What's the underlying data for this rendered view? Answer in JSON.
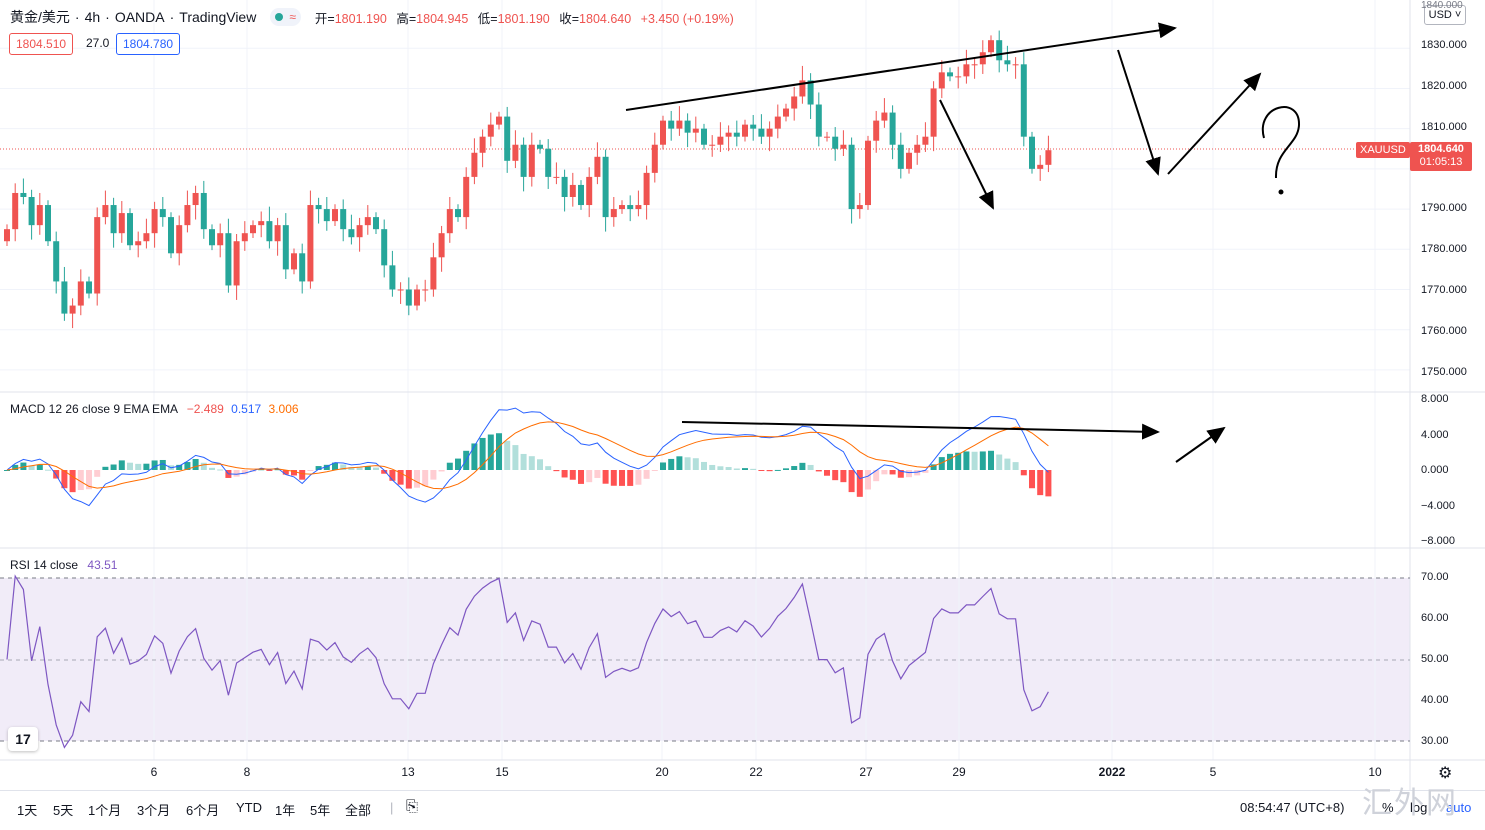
{
  "header": {
    "symbol": "黄金/美元",
    "interval": "4h",
    "broker": "OANDA",
    "platform": "TradingView",
    "ohlc": [
      {
        "k": "开=",
        "v": "1801.190"
      },
      {
        "k": "高=",
        "v": "1804.945"
      },
      {
        "k": "低=",
        "v": "1801.190"
      },
      {
        "k": "收=",
        "v": "1804.640"
      }
    ],
    "change": "+3.450 (+0.19%)",
    "bid": "1804.510",
    "spread": "27.0",
    "ask": "1804.780"
  },
  "price_axis": {
    "currency": "USD",
    "labels": [
      "1840.000",
      "1830.000",
      "1820.000",
      "1810.000",
      "1790.000",
      "1780.000",
      "1770.000",
      "1760.000",
      "1750.000"
    ],
    "current_symbol": "XAUUSD",
    "current_price": "1804.640",
    "countdown": "01:05:13"
  },
  "macd": {
    "title": "MACD 12 26 close 9 EMA EMA",
    "hist_val": "−2.489",
    "macd_val": "0.517",
    "signal_val": "3.006",
    "axis": [
      "8.000",
      "4.000",
      "0.000",
      "−4.000",
      "−8.000"
    ],
    "colors": {
      "macd": "#2962ff",
      "signal": "#ff6d00"
    }
  },
  "rsi": {
    "title": "RSI 14 close",
    "value": "43.51",
    "axis": [
      "70.00",
      "60.00",
      "50.00",
      "40.00",
      "30.00"
    ],
    "color": "#7e57c2"
  },
  "time_axis": [
    "6",
    "8",
    "13",
    "15",
    "20",
    "22",
    "27",
    "29",
    "2022",
    "5",
    "10"
  ],
  "toolbar": {
    "ranges": [
      "1天",
      "5天",
      "1个月",
      "3个月",
      "6个月",
      "YTD",
      "1年",
      "5年",
      "全部"
    ],
    "clock": "08:54:47 (UTC+8)",
    "percent": "%",
    "log": "log",
    "auto": "auto"
  },
  "watermark": "汇外网",
  "colors": {
    "up": "#ef5350",
    "down": "#26a69a",
    "accent": "#2962ff"
  },
  "chart_data": {
    "type": "candlestick",
    "price_range": [
      1745,
      1841
    ],
    "closes": [
      1785,
      1794,
      1793,
      1786,
      1791,
      1782,
      1772,
      1764,
      1766,
      1772,
      1769,
      1788,
      1791,
      1784,
      1789,
      1781,
      1782,
      1784,
      1790,
      1788,
      1779,
      1786,
      1791,
      1794,
      1785,
      1781,
      1784,
      1771,
      1782,
      1784,
      1786,
      1787,
      1782,
      1786,
      1775,
      1779,
      1772,
      1791,
      1790,
      1787,
      1790,
      1785,
      1783,
      1786,
      1788,
      1785,
      1776,
      1770,
      1770,
      1766,
      1770,
      1770,
      1778,
      1784,
      1790,
      1788,
      1798,
      1804,
      1808,
      1811,
      1813,
      1802,
      1806,
      1798,
      1806,
      1805,
      1798,
      1798,
      1793,
      1796,
      1791,
      1798,
      1803,
      1788,
      1790,
      1791,
      1790,
      1791,
      1799,
      1806,
      1812,
      1810,
      1812,
      1809,
      1810,
      1806,
      1806,
      1808,
      1809,
      1808,
      1811,
      1810,
      1808,
      1810,
      1813,
      1815,
      1818,
      1822,
      1816,
      1808,
      1808,
      1805,
      1806,
      1790,
      1791,
      1807,
      1812,
      1814,
      1806,
      1800,
      1804,
      1806,
      1808,
      1820,
      1824,
      1823,
      1823,
      1826,
      1826,
      1829,
      1832,
      1827,
      1826,
      1826,
      1808,
      1800,
      1801,
      1804.64
    ]
  }
}
